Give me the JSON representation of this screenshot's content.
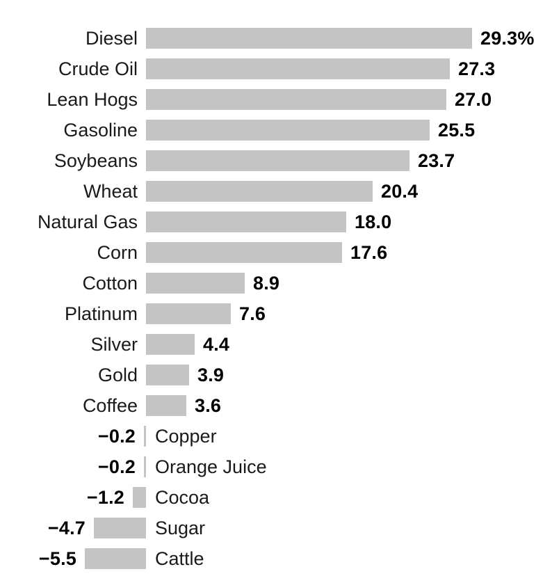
{
  "chart_data": {
    "type": "bar",
    "orientation": "horizontal",
    "title": "",
    "xlabel": "",
    "ylabel": "",
    "grid": false,
    "legend": false,
    "axis_lines": false,
    "xlim": [
      -5.5,
      29.3
    ],
    "value_unit": "percent",
    "bar_color": "#c4c4c4",
    "label_color": "#1a1a1a",
    "value_color": "#000000",
    "background_color": "#ffffff",
    "rows": [
      {
        "label": "Diesel",
        "value": 29.3,
        "display": "29.3%"
      },
      {
        "label": "Crude Oil",
        "value": 27.3,
        "display": "27.3"
      },
      {
        "label": "Lean Hogs",
        "value": 27.0,
        "display": "27.0"
      },
      {
        "label": "Gasoline",
        "value": 25.5,
        "display": "25.5"
      },
      {
        "label": "Soybeans",
        "value": 23.7,
        "display": "23.7"
      },
      {
        "label": "Wheat",
        "value": 20.4,
        "display": "20.4"
      },
      {
        "label": "Natural Gas",
        "value": 18.0,
        "display": "18.0"
      },
      {
        "label": "Corn",
        "value": 17.6,
        "display": "17.6"
      },
      {
        "label": "Cotton",
        "value": 8.9,
        "display": "8.9"
      },
      {
        "label": "Platinum",
        "value": 7.6,
        "display": "7.6"
      },
      {
        "label": "Silver",
        "value": 4.4,
        "display": "4.4"
      },
      {
        "label": "Gold",
        "value": 3.9,
        "display": "3.9"
      },
      {
        "label": "Coffee",
        "value": 3.6,
        "display": "3.6"
      },
      {
        "label": "Copper",
        "value": -0.2,
        "display": "−0.2"
      },
      {
        "label": "Orange Juice",
        "value": -0.2,
        "display": "−0.2"
      },
      {
        "label": "Cocoa",
        "value": -1.2,
        "display": "−1.2"
      },
      {
        "label": "Sugar",
        "value": -4.7,
        "display": "−4.7"
      },
      {
        "label": "Cattle",
        "value": -5.5,
        "display": "−5.5"
      }
    ]
  }
}
